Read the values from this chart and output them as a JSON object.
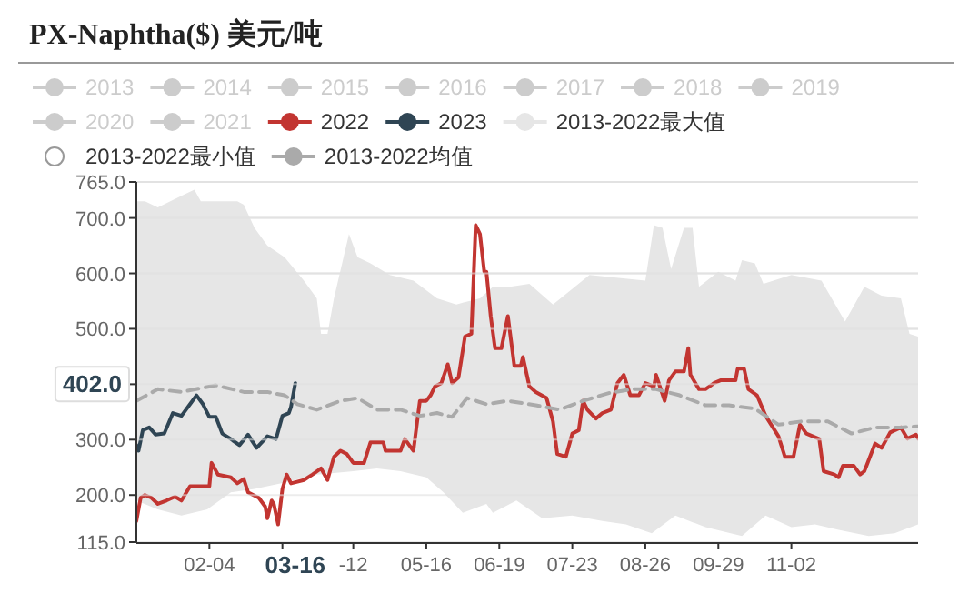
{
  "chart_data": {
    "type": "line",
    "title": "PX-Naphtha($) 美元/吨",
    "legend": "top",
    "grid": "y",
    "xlim": [
      "--01-01",
      "--12-31"
    ],
    "xticks": [
      {
        "value": "--02-04",
        "label": "02-04"
      },
      {
        "value": "--03-10",
        "label": null
      },
      {
        "value": "--04-12",
        "label": "-12"
      },
      {
        "value": "--05-16",
        "label": "05-16"
      },
      {
        "value": "--06-19",
        "label": "06-19"
      },
      {
        "value": "--07-23",
        "label": "07-23"
      },
      {
        "value": "--08-26",
        "label": "08-26"
      },
      {
        "value": "--09-29",
        "label": "09-29"
      },
      {
        "value": "--11-02",
        "label": "11-02"
      }
    ],
    "ylim": [
      115,
      765
    ],
    "yticks": [
      {
        "value": 115,
        "label": "115.0"
      },
      {
        "value": 200,
        "label": "200.0"
      },
      {
        "value": 300,
        "label": "300.0"
      },
      {
        "value": 400,
        "label": null
      },
      {
        "value": 500,
        "label": "500.0"
      },
      {
        "value": 600,
        "label": "600.0"
      },
      {
        "value": 700,
        "label": "700.0"
      },
      {
        "value": 765,
        "label": "765.0"
      }
    ],
    "annotations": [
      "402.0",
      "03-16"
    ],
    "series": [
      {
        "name": "2013",
        "color": "#cccccc"
      },
      {
        "name": "2014",
        "color": "#cccccc"
      },
      {
        "name": "2015",
        "color": "#cccccc"
      },
      {
        "name": "2016",
        "color": "#cccccc"
      },
      {
        "name": "2017",
        "color": "#cccccc"
      },
      {
        "name": "2018",
        "color": "#cccccc"
      },
      {
        "name": "2019",
        "color": "#cccccc"
      },
      {
        "name": "2020",
        "color": "#cccccc"
      },
      {
        "name": "2021",
        "color": "#cccccc"
      },
      {
        "name": "2022",
        "color": "#c23531",
        "x": [
          "--01-01",
          "--01-03",
          "--01-05",
          "--01-08",
          "--01-11",
          "--01-15",
          "--01-19",
          "--01-22",
          "--01-26",
          "--02-04",
          "--02-05",
          "--02-08",
          "--02-14",
          "--02-17",
          "--02-20",
          "--02-22",
          "--02-27",
          "--03-02",
          "--03-03",
          "--03-05",
          "--03-06",
          "--03-08",
          "--03-10",
          "--03-12",
          "--03-14",
          "--03-20",
          "--03-24",
          "--03-28",
          "--03-31",
          "--04-03",
          "--04-06",
          "--04-09",
          "--04-12",
          "--04-17",
          "--04-20",
          "--04-26",
          "--04-27",
          "--05-04",
          "--05-06",
          "--05-09",
          "--05-10",
          "--05-13",
          "--05-16",
          "--05-18",
          "--05-20",
          "--05-23",
          "--05-26",
          "--05-28",
          "--05-31",
          "--06-03",
          "--06-06",
          "--06-08",
          "--06-10",
          "--06-12",
          "--06-13",
          "--06-15",
          "--06-17",
          "--06-20",
          "--06-23",
          "--06-26",
          "--06-29",
          "--06-30",
          "--07-03",
          "--07-06",
          "--07-11",
          "--07-14",
          "--07-16",
          "--07-20",
          "--07-23",
          "--07-26",
          "--07-28",
          "--07-30",
          "--08-03",
          "--08-06",
          "--08-10",
          "--08-13",
          "--08-16",
          "--08-19",
          "--08-23",
          "--08-26",
          "--08-30",
          "--08-31",
          "--09-04",
          "--09-06",
          "--09-09",
          "--09-13",
          "--09-15",
          "--09-16",
          "--09-20",
          "--09-23",
          "--09-27",
          "--09-30",
          "--10-07",
          "--10-08",
          "--10-11",
          "--10-13",
          "--10-17",
          "--10-21",
          "--10-27",
          "--10-30",
          "--11-03",
          "--11-06",
          "--11-09",
          "--11-15",
          "--11-17",
          "--11-22",
          "--11-24",
          "--11-26",
          "--12-01",
          "--12-04",
          "--12-06",
          "--12-11",
          "--12-14",
          "--12-18",
          "--12-23",
          "--12-26",
          "--12-30",
          "--12-31"
        ],
        "values": [
          153,
          195,
          200,
          195,
          184,
          190,
          197,
          190,
          216,
          216,
          258,
          237,
          232,
          221,
          229,
          205,
          195,
          179,
          158,
          190,
          184,
          147,
          211,
          237,
          221,
          227,
          237,
          248,
          227,
          269,
          280,
          274,
          258,
          258,
          295,
          295,
          280,
          280,
          301,
          285,
          280,
          370,
          370,
          380,
          396,
          402,
          436,
          402,
          412,
          486,
          491,
          687,
          671,
          603,
          603,
          523,
          465,
          465,
          523,
          433,
          433,
          449,
          396,
          386,
          375,
          333,
          274,
          269,
          311,
          317,
          370,
          354,
          338,
          348,
          354,
          402,
          417,
          380,
          380,
          402,
          396,
          417,
          370,
          407,
          423,
          423,
          465,
          417,
          391,
          391,
          402,
          407,
          407,
          428,
          428,
          391,
          380,
          343,
          306,
          269,
          269,
          327,
          311,
          301,
          243,
          237,
          232,
          253,
          253,
          237,
          243,
          293,
          285,
          313,
          322,
          302,
          309,
          302
        ]
      },
      {
        "name": "2023",
        "color": "#2f4554",
        "x": [
          "--01-01",
          "--01-02",
          "--01-04",
          "--01-07",
          "--01-10",
          "--01-14",
          "--01-18",
          "--01-22",
          "--01-26",
          "--01-29",
          "--02-01",
          "--02-04",
          "--02-07",
          "--02-10",
          "--02-14",
          "--02-18",
          "--02-22",
          "--02-26",
          "--03-03",
          "--03-07",
          "--03-10",
          "--03-13",
          "--03-14",
          "--03-16"
        ],
        "values": [
          290,
          280,
          317,
          322,
          309,
          311,
          348,
          343,
          364,
          380,
          364,
          341,
          341,
          311,
          301,
          290,
          309,
          285,
          306,
          301,
          343,
          348,
          359,
          402
        ]
      },
      {
        "name": "2013-2022最大值",
        "color": "#e6e6e6",
        "type": "area",
        "x": [
          "--01-01",
          "--01-05",
          "--01-11",
          "--01-22",
          "--01-28",
          "--01-31",
          "--02-17",
          "--02-20",
          "--02-25",
          "--03-03",
          "--03-11",
          "--03-20",
          "--03-26",
          "--03-28",
          "--03-31",
          "--04-03",
          "--04-10",
          "--04-14",
          "--04-20",
          "--04-29",
          "--05-10",
          "--05-21",
          "--05-30",
          "--06-10",
          "--06-16",
          "--06-24",
          "--07-03",
          "--07-14",
          "--07-31",
          "--08-26",
          "--08-30",
          "--09-03",
          "--09-07",
          "--09-13",
          "--09-17",
          "--09-20",
          "--09-29",
          "--10-07",
          "--10-10",
          "--10-16",
          "--10-20",
          "--11-02",
          "--11-16",
          "--11-27",
          "--12-06",
          "--12-14",
          "--12-23",
          "--12-27",
          "--12-31"
        ],
        "values": [
          730,
          730,
          719,
          740,
          751,
          730,
          730,
          724,
          682,
          650,
          629,
          587,
          555,
          491,
          491,
          555,
          671,
          629,
          618,
          597,
          587,
          555,
          544,
          555,
          576,
          576,
          581,
          544,
          597,
          587,
          687,
          682,
          608,
          682,
          682,
          576,
          603,
          587,
          624,
          618,
          581,
          597,
          587,
          513,
          576,
          560,
          555,
          491,
          486
        ]
      },
      {
        "name": "2013-2022最小值",
        "color": "#ffffff",
        "type": "area",
        "x": [
          "--01-01",
          "--01-11",
          "--01-22",
          "--02-03",
          "--02-14",
          "--02-25",
          "--03-09",
          "--03-26",
          "--04-12",
          "--04-23",
          "--05-04",
          "--05-16",
          "--05-24",
          "--06-02",
          "--06-13",
          "--06-16",
          "--06-27",
          "--07-09",
          "--07-23",
          "--08-06",
          "--08-17",
          "--08-29",
          "--09-09",
          "--09-23",
          "--10-10",
          "--10-21",
          "--11-02",
          "--11-13",
          "--11-24",
          "--12-08",
          "--12-20",
          "--12-31"
        ],
        "values": [
          190,
          174,
          163,
          174,
          205,
          211,
          221,
          237,
          243,
          248,
          243,
          232,
          205,
          168,
          184,
          168,
          190,
          158,
          163,
          153,
          147,
          131,
          163,
          142,
          126,
          163,
          142,
          147,
          137,
          126,
          131,
          147
        ]
      },
      {
        "name": "2013-2022均值",
        "color": "#aaaaaa",
        "type": "line",
        "line_style": "dashed",
        "x": [
          "--01-01",
          "--01-11",
          "--01-22",
          "--02-07",
          "--02-20",
          "--03-03",
          "--03-11",
          "--03-17",
          "--03-26",
          "--04-06",
          "--04-14",
          "--04-23",
          "--05-04",
          "--05-13",
          "--05-21",
          "--05-28",
          "--06-04",
          "--06-13",
          "--06-23",
          "--07-06",
          "--07-17",
          "--07-28",
          "--08-09",
          "--08-20",
          "--08-31",
          "--09-11",
          "--09-23",
          "--10-04",
          "--10-16",
          "--10-27",
          "--11-07",
          "--11-19",
          "--11-30",
          "--12-11",
          "--12-23",
          "--12-31"
        ],
        "values": [
          370,
          391,
          386,
          398,
          386,
          386,
          380,
          364,
          354,
          370,
          375,
          354,
          354,
          343,
          348,
          341,
          375,
          364,
          370,
          362,
          354,
          370,
          384,
          391,
          391,
          380,
          362,
          362,
          356,
          327,
          333,
          333,
          311,
          322,
          322,
          324
        ]
      }
    ]
  }
}
